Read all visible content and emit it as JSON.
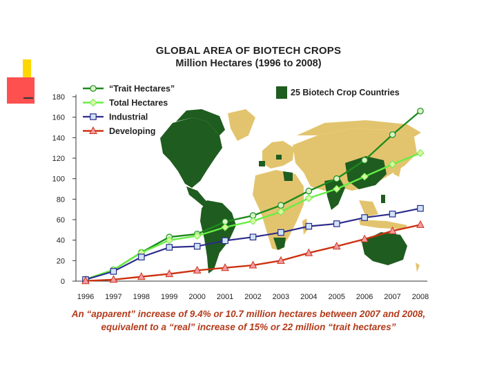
{
  "colors": {
    "map_land": "#e3c46e",
    "map_biotech": "#1f5c1f",
    "trait": "#1e8a1e",
    "total": "#66ee44",
    "industrial": "#2b2b8c",
    "developing": "#cc3311",
    "caption": "#b33a1a"
  },
  "chart_data": {
    "type": "line",
    "title": "GLOBAL AREA OF BIOTECH CROPS",
    "subtitle": "Million Hectares (1996 to 2008)",
    "xlabel": "",
    "ylabel": "",
    "ylim": [
      0,
      180
    ],
    "yticks": [
      0,
      20,
      40,
      60,
      80,
      100,
      120,
      140,
      160,
      180
    ],
    "categories": [
      "1996",
      "1997",
      "1998",
      "1999",
      "2000",
      "2001",
      "2002",
      "2003",
      "2004",
      "2005",
      "2006",
      "2007",
      "2008"
    ],
    "series": [
      {
        "name": "“Trait Hectares”",
        "marker": "circle",
        "values": [
          1.7,
          11,
          28,
          43,
          46,
          58,
          64,
          74,
          88,
          100,
          118,
          143,
          166
        ]
      },
      {
        "name": "Total Hectares",
        "marker": "diamond",
        "values": [
          1.7,
          11,
          27.8,
          39.9,
          44.2,
          52.6,
          58.7,
          67.7,
          81,
          90,
          102,
          114,
          125
        ]
      },
      {
        "name": "Industrial",
        "marker": "square",
        "values": [
          1.5,
          9.5,
          23.5,
          33,
          34,
          39.5,
          43,
          47.5,
          53.5,
          56,
          62,
          65.5,
          71
        ]
      },
      {
        "name": "Developing",
        "marker": "triangle",
        "values": [
          0.2,
          1.5,
          4.3,
          7,
          10.5,
          13,
          15.5,
          20,
          27.5,
          34,
          41,
          49,
          55
        ]
      }
    ],
    "map_legend": "25 Biotech Crop Countries"
  },
  "captions": {
    "line1": "An “apparent” increase of 9.4% or 10.7 million hectares between 2007 and 2008,",
    "line2": "equivalent to a “real” increase of 15% or 22 million “trait hectares”"
  }
}
